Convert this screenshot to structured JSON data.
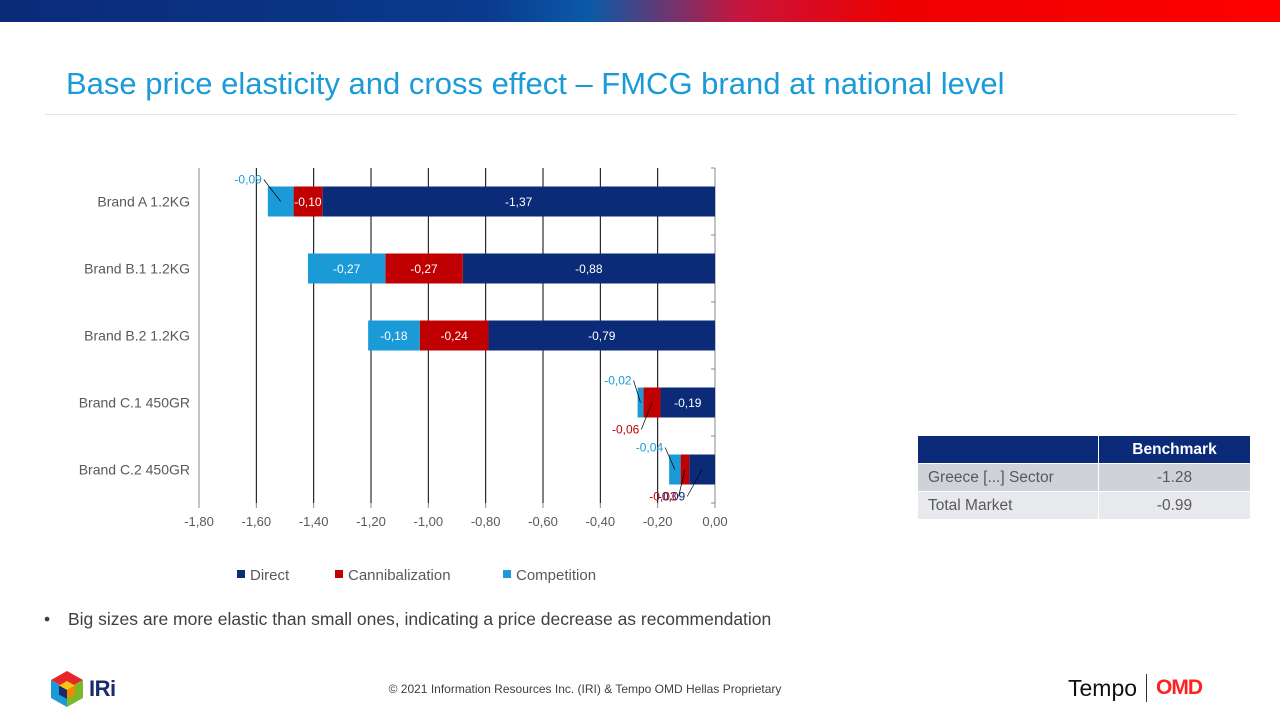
{
  "title": "Base price elasticity and cross effect – FMCG brand at national level",
  "chart_data": {
    "type": "bar",
    "orientation": "horizontal",
    "stacked": true,
    "categories": [
      "Brand A   1.2KG",
      "Brand B.1   1.2KG",
      "Brand B.2   1.2KG",
      "Brand C.1   450GR",
      "Brand C.2   450GR"
    ],
    "series": [
      {
        "name": "Direct",
        "color": "#0b2a78",
        "values": [
          -1.37,
          -0.88,
          -0.79,
          -0.19,
          -0.09
        ],
        "labels": [
          "-1,37",
          "-0,88",
          "-0,79",
          "-0,19",
          "-0,09"
        ]
      },
      {
        "name": "Cannibalization",
        "color": "#c00000",
        "values": [
          -0.1,
          -0.27,
          -0.24,
          -0.06,
          -0.03
        ],
        "labels": [
          "-0,10",
          "-0,27",
          "-0,24",
          "-0,06",
          "-0,03"
        ]
      },
      {
        "name": "Competition",
        "color": "#1a9bd7",
        "values": [
          -0.09,
          -0.27,
          -0.18,
          -0.02,
          -0.04
        ],
        "labels": [
          "-0,09",
          "-0,27",
          "-0,18",
          "-0,02",
          "-0,04"
        ]
      }
    ],
    "xlim": [
      -1.8,
      0.0
    ],
    "xticks": [
      "-1,80",
      "-1,60",
      "-1,40",
      "-1,20",
      "-1,00",
      "-0,80",
      "-0,60",
      "-0,40",
      "-0,20",
      "0,00"
    ],
    "grid": true,
    "legend": "bottom"
  },
  "benchmark_table": {
    "header": [
      "",
      "Benchmark"
    ],
    "rows": [
      {
        "label": "Greece [...] Sector",
        "value": "-1.28"
      },
      {
        "label": "Total Market",
        "value": "-0.99"
      }
    ]
  },
  "bullet": "Big sizes are more elastic than small ones, indicating a price decrease as recommendation",
  "footer": "© 2021 Information Resources Inc. (IRI) & Tempo OMD Hellas Proprietary",
  "logos": {
    "iri": "IRi",
    "tempo": "Tempo",
    "omd": "OMD"
  }
}
